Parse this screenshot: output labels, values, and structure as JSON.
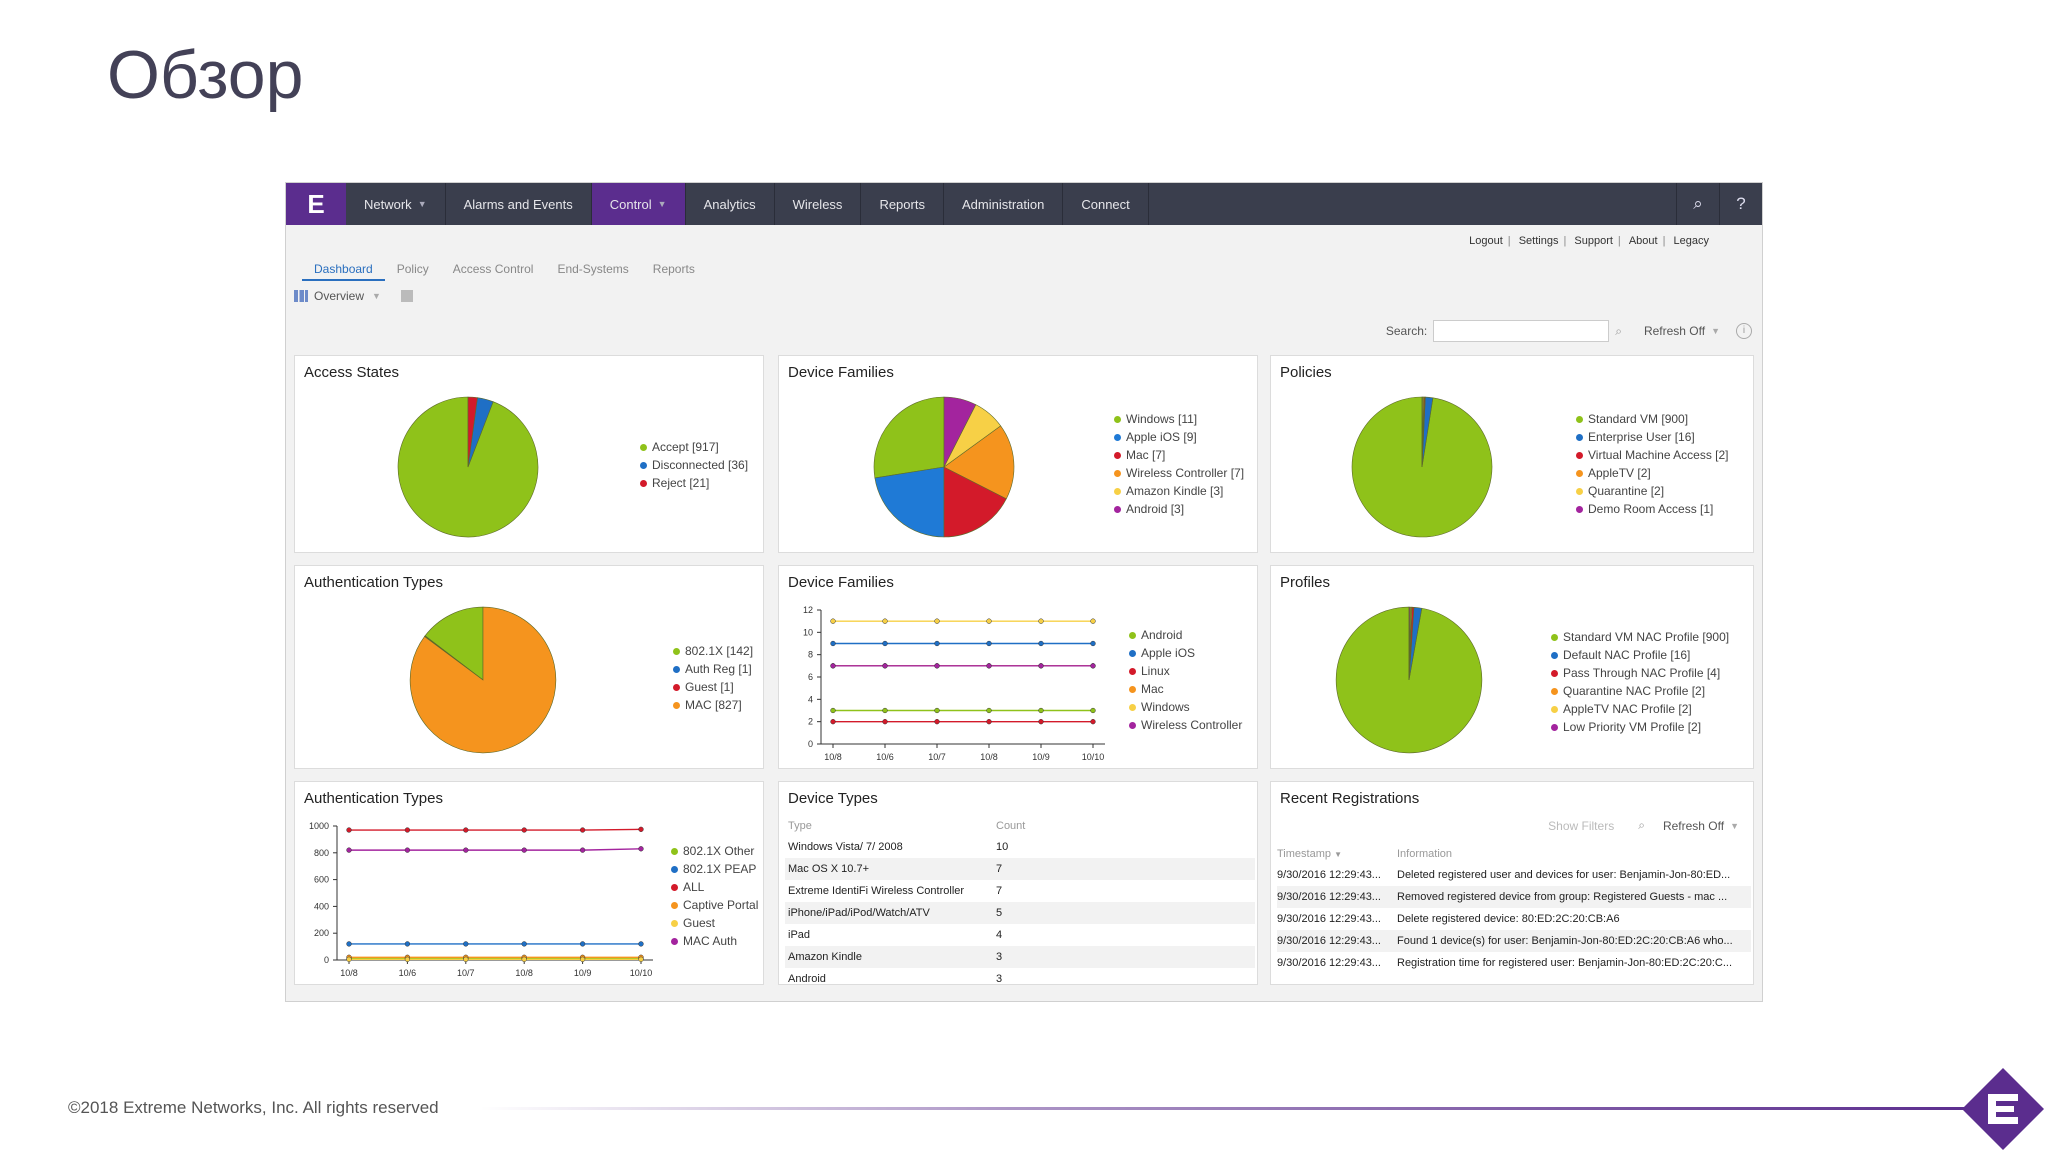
{
  "slide_title": "Обзор",
  "footer": "©2018 Extreme Networks, Inc.  All rights reserved",
  "brand_color": "#5b2d8e",
  "nav": {
    "logo": "E",
    "items": [
      {
        "label": "Network",
        "caret": true
      },
      {
        "label": "Alarms and Events",
        "caret": false
      },
      {
        "label": "Control",
        "caret": true,
        "active": true
      },
      {
        "label": "Analytics",
        "caret": false
      },
      {
        "label": "Wireless",
        "caret": false
      },
      {
        "label": "Reports",
        "caret": false
      },
      {
        "label": "Administration",
        "caret": false
      },
      {
        "label": "Connect",
        "caret": false
      }
    ],
    "search_icon": "search-icon",
    "help": "?"
  },
  "util_links": [
    "Logout",
    "Settings",
    "Support",
    "About",
    "Legacy"
  ],
  "tabs": [
    "Dashboard",
    "Policy",
    "Access Control",
    "End-Systems",
    "Reports"
  ],
  "view_select": "Overview",
  "search": {
    "label": "Search:",
    "value": "",
    "refresh": "Refresh Off"
  },
  "panels": {
    "access_states": {
      "title": "Access States",
      "legend": [
        "Accept [917]",
        "Disconnected [36]",
        "Reject [21]"
      ],
      "values": [
        917,
        36,
        21
      ],
      "colors": [
        "#8fc21a",
        "#1f6fc5",
        "#d31a2a"
      ]
    },
    "device_families": {
      "title": "Device Families",
      "legend": [
        "Windows [11]",
        "Apple iOS [9]",
        "Mac [7]",
        "Wireless Controller [7]",
        "Amazon Kindle [3]",
        "Android [3]"
      ],
      "values": [
        11,
        9,
        7,
        7,
        3,
        3
      ],
      "colors": [
        "#8fc21a",
        "#1f7ad6",
        "#d31a2a",
        "#f5941e",
        "#f7d046",
        "#a3249e"
      ]
    },
    "policies": {
      "title": "Policies",
      "legend": [
        "Standard VM [900]",
        "Enterprise User [16]",
        "Virtual Machine Access [2]",
        "AppleTV [2]",
        "Quarantine [2]",
        "Demo Room Access [1]"
      ],
      "values": [
        900,
        16,
        2,
        2,
        2,
        1
      ],
      "colors": [
        "#8fc21a",
        "#1f6fc5",
        "#d31a2a",
        "#f5941e",
        "#f7d046",
        "#a3249e"
      ]
    },
    "auth_types_pie": {
      "title": "Authentication Types",
      "legend": [
        "802.1X [142]",
        "Auth Reg [1]",
        "Guest [1]",
        "MAC [827]"
      ],
      "values": [
        142,
        1,
        1,
        827
      ],
      "colors": [
        "#8fc21a",
        "#1f6fc5",
        "#d31a2a",
        "#f5941e"
      ]
    },
    "device_families_line": {
      "title": "Device Families",
      "legend": [
        "Android",
        "Apple iOS",
        "Linux",
        "Mac",
        "Windows",
        "Wireless Controller"
      ],
      "colors": [
        "#8fc21a",
        "#1f6fc5",
        "#d31a2a",
        "#f5941e",
        "#f7d046",
        "#a3249e"
      ],
      "y_ticks": [
        "12",
        "10",
        "8",
        "6",
        "4",
        "2",
        "0"
      ],
      "x_ticks": [
        "10/8",
        "10/6",
        "10/7",
        "10/8",
        "10/9",
        "10/10"
      ]
    },
    "profiles": {
      "title": "Profiles",
      "legend": [
        "Standard VM NAC Profile [900]",
        "Default NAC Profile [16]",
        "Pass Through NAC Profile [4]",
        "Quarantine NAC Profile [2]",
        "AppleTV NAC Profile [2]",
        "Low Priority VM Profile [2]"
      ],
      "values": [
        900,
        16,
        4,
        2,
        2,
        2
      ],
      "colors": [
        "#8fc21a",
        "#1f6fc5",
        "#d31a2a",
        "#f5941e",
        "#f7d046",
        "#a3249e"
      ]
    },
    "auth_types_line": {
      "title": "Authentication Types",
      "legend": [
        "802.1X Other",
        "802.1X PEAP",
        "ALL",
        "Captive Portal",
        "Guest",
        "MAC Auth"
      ],
      "colors": [
        "#8fc21a",
        "#1f6fc5",
        "#d31a2a",
        "#f5941e",
        "#f7d046",
        "#a3249e"
      ],
      "y_ticks": [
        "1000",
        "800",
        "600",
        "400",
        "200",
        "0"
      ],
      "x_ticks": [
        "10/8",
        "10/6",
        "10/7",
        "10/8",
        "10/9",
        "10/10"
      ]
    },
    "device_types": {
      "title": "Device Types",
      "headers": [
        "Type",
        "Count"
      ],
      "rows": [
        [
          "Windows Vista/ 7/ 2008",
          "10"
        ],
        [
          "Mac OS X 10.7+",
          "7"
        ],
        [
          "Extreme IdentiFi Wireless Controller",
          "7"
        ],
        [
          "iPhone/iPad/iPod/Watch/ATV",
          "5"
        ],
        [
          "iPad",
          "4"
        ],
        [
          "Amazon Kindle",
          "3"
        ],
        [
          "Android",
          "3"
        ]
      ]
    },
    "recent_registrations": {
      "title": "Recent Registrations",
      "show_filters": "Show Filters",
      "refresh": "Refresh Off",
      "headers": [
        "Timestamp",
        "Information"
      ],
      "rows": [
        [
          "9/30/2016 12:29:43...",
          "Deleted registered user and devices for user: Benjamin-Jon-80:ED..."
        ],
        [
          "9/30/2016 12:29:43...",
          "Removed registered device from group: Registered Guests - mac ..."
        ],
        [
          "9/30/2016 12:29:43...",
          "Delete registered device: 80:ED:2C:20:CB:A6"
        ],
        [
          "9/30/2016 12:29:43...",
          "Found 1 device(s) for user: Benjamin-Jon-80:ED:2C:20:CB:A6 who..."
        ],
        [
          "9/30/2016 12:29:43...",
          "Registration time for registered user: Benjamin-Jon-80:ED:2C:20:C..."
        ]
      ]
    }
  },
  "chart_data": [
    {
      "type": "pie",
      "title": "Access States",
      "categories": [
        "Accept",
        "Disconnected",
        "Reject"
      ],
      "values": [
        917,
        36,
        21
      ]
    },
    {
      "type": "pie",
      "title": "Device Families",
      "categories": [
        "Windows",
        "Apple iOS",
        "Mac",
        "Wireless Controller",
        "Amazon Kindle",
        "Android"
      ],
      "values": [
        11,
        9,
        7,
        7,
        3,
        3
      ]
    },
    {
      "type": "pie",
      "title": "Policies",
      "categories": [
        "Standard VM",
        "Enterprise User",
        "Virtual Machine Access",
        "AppleTV",
        "Quarantine",
        "Demo Room Access"
      ],
      "values": [
        900,
        16,
        2,
        2,
        2,
        1
      ]
    },
    {
      "type": "pie",
      "title": "Authentication Types",
      "categories": [
        "802.1X",
        "Auth Reg",
        "Guest",
        "MAC"
      ],
      "values": [
        142,
        1,
        1,
        827
      ]
    },
    {
      "type": "line",
      "title": "Device Families",
      "x": [
        "10/8",
        "10/6",
        "10/7",
        "10/8",
        "10/9",
        "10/10"
      ],
      "ylim": [
        0,
        12
      ],
      "series": [
        {
          "name": "Android",
          "values": [
            3,
            3,
            3,
            3,
            3,
            3
          ]
        },
        {
          "name": "Apple iOS",
          "values": [
            9,
            9,
            9,
            9,
            9,
            9
          ]
        },
        {
          "name": "Linux",
          "values": [
            2,
            2,
            2,
            2,
            2,
            2
          ]
        },
        {
          "name": "Mac",
          "values": [
            7,
            7,
            7,
            7,
            7,
            7
          ]
        },
        {
          "name": "Windows",
          "values": [
            11,
            11,
            11,
            11,
            11,
            11
          ]
        },
        {
          "name": "Wireless Controller",
          "values": [
            7,
            7,
            7,
            7,
            7,
            7
          ]
        }
      ]
    },
    {
      "type": "pie",
      "title": "Profiles",
      "categories": [
        "Standard VM NAC Profile",
        "Default NAC Profile",
        "Pass Through NAC Profile",
        "Quarantine NAC Profile",
        "AppleTV NAC Profile",
        "Low Priority VM Profile"
      ],
      "values": [
        900,
        16,
        4,
        2,
        2,
        2
      ]
    },
    {
      "type": "line",
      "title": "Authentication Types",
      "x": [
        "10/8",
        "10/6",
        "10/7",
        "10/8",
        "10/9",
        "10/10"
      ],
      "ylim": [
        0,
        1000
      ],
      "series": [
        {
          "name": "802.1X Other",
          "values": [
            10,
            10,
            10,
            10,
            10,
            10
          ]
        },
        {
          "name": "802.1X PEAP",
          "values": [
            120,
            120,
            120,
            120,
            120,
            120
          ]
        },
        {
          "name": "ALL",
          "values": [
            970,
            970,
            970,
            970,
            970,
            975
          ]
        },
        {
          "name": "Captive Portal",
          "values": [
            20,
            20,
            20,
            20,
            20,
            20
          ]
        },
        {
          "name": "Guest",
          "values": [
            5,
            5,
            5,
            5,
            5,
            5
          ]
        },
        {
          "name": "MAC Auth",
          "values": [
            820,
            820,
            820,
            820,
            820,
            830
          ]
        }
      ]
    }
  ]
}
